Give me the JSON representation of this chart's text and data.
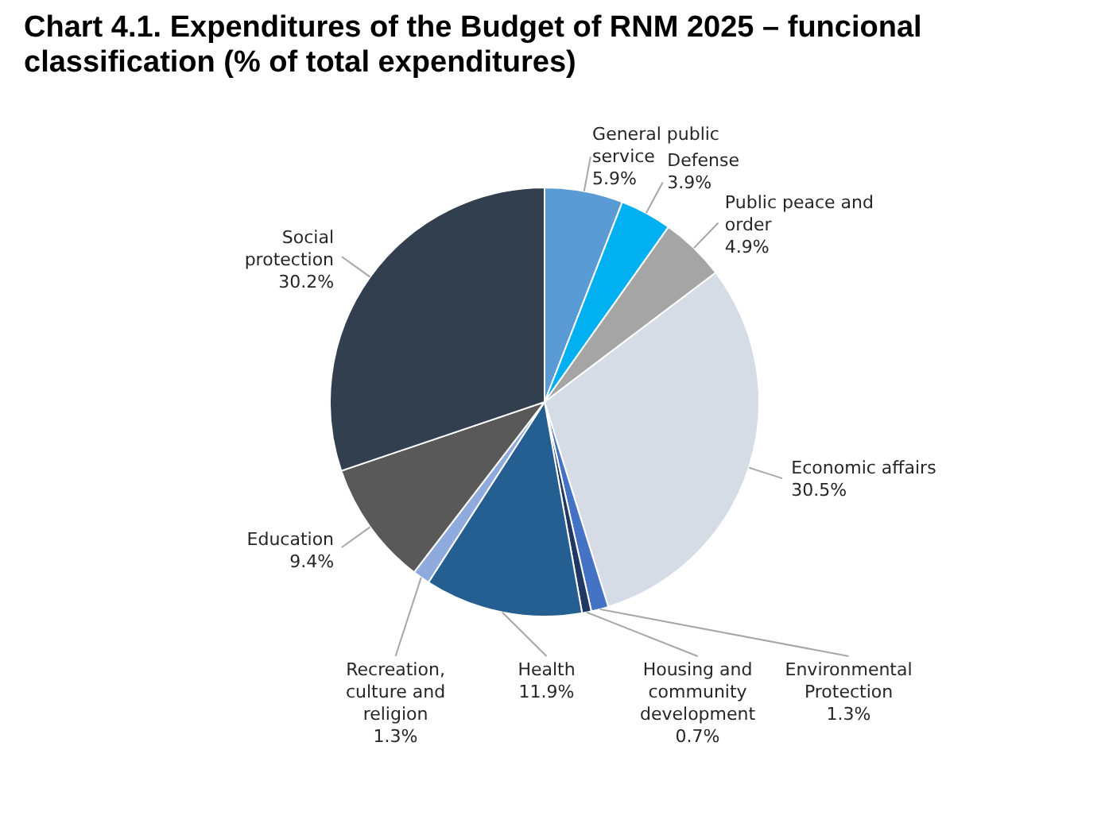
{
  "chart_data": {
    "type": "pie",
    "title": "Chart 4.1. Expenditures of the Budget of RNM 2025 – funcional classification (% of total expenditures)",
    "categories": [
      "General public service",
      "Defense",
      "Public peace and order",
      "Economic affairs",
      "Environmental Protection",
      "Housing and community development",
      "Health",
      "Recreation, culture and religion",
      "Education",
      "Social protection"
    ],
    "values": [
      5.9,
      3.9,
      4.9,
      30.5,
      1.3,
      0.7,
      11.9,
      1.3,
      9.4,
      30.2
    ],
    "value_labels": [
      "5.9%",
      "3.9%",
      "4.9%",
      "30.5%",
      "1.3%",
      "0.7%",
      "11.9%",
      "1.3%",
      "9.4%",
      "30.2%"
    ],
    "colors": [
      "#5b9bd5",
      "#00b0f0",
      "#a5a5a5",
      "#d6dce5",
      "#4472c4",
      "#1f3864",
      "#255e91",
      "#8faadc",
      "#595959",
      "#323f4f"
    ]
  }
}
